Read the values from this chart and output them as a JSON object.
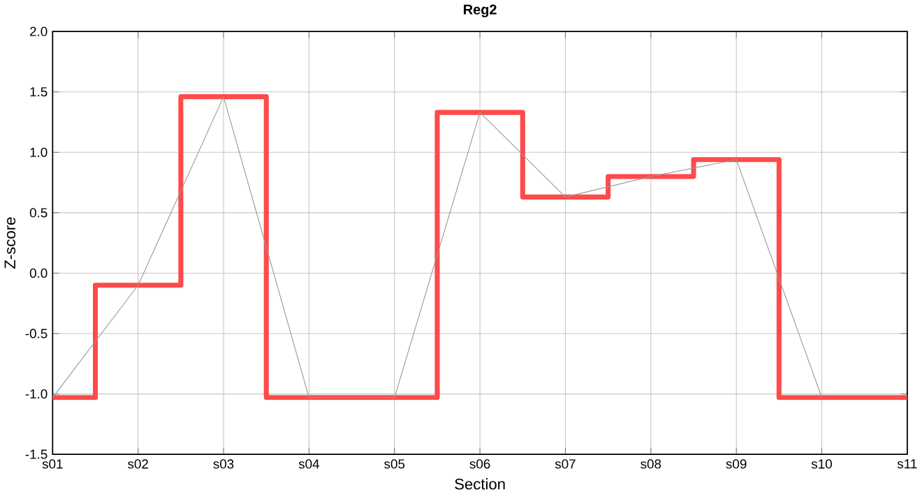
{
  "chart_data": {
    "type": "step",
    "title": "Reg2",
    "xlabel": "Section",
    "ylabel": "Z-score",
    "categories": [
      "s01",
      "s02",
      "s03",
      "s04",
      "s05",
      "s06",
      "s07",
      "s08",
      "s09",
      "s10",
      "s11"
    ],
    "series": [
      {
        "color": "#ff4040",
        "values": [
          -1.03,
          -0.1,
          1.46,
          -1.03,
          -1.03,
          1.33,
          0.63,
          0.8,
          0.94,
          -1.03,
          -1.03
        ]
      },
      {
        "type": "line",
        "color": "#999999",
        "values": [
          -1.03,
          -0.1,
          1.46,
          -1.03,
          -1.03,
          1.33,
          0.63,
          0.8,
          0.94,
          -1.03,
          null
        ]
      }
    ],
    "ylim": [
      -1.5,
      2.0
    ],
    "yticks": [
      {
        "value": -1.5,
        "label": "-1.5"
      },
      {
        "value": -1.0,
        "label": "-1.0"
      },
      {
        "value": -0.5,
        "label": "-0.5"
      },
      {
        "value": 0,
        "label": "0.0"
      },
      {
        "value": 0.5,
        "label": "0.5"
      },
      {
        "value": 1.0,
        "label": "1.0"
      },
      {
        "value": 1.5,
        "label": "1.5"
      },
      {
        "value": 2.0,
        "label": "2.0"
      }
    ],
    "grid": true,
    "marker": "none",
    "line_style": "solid"
  }
}
